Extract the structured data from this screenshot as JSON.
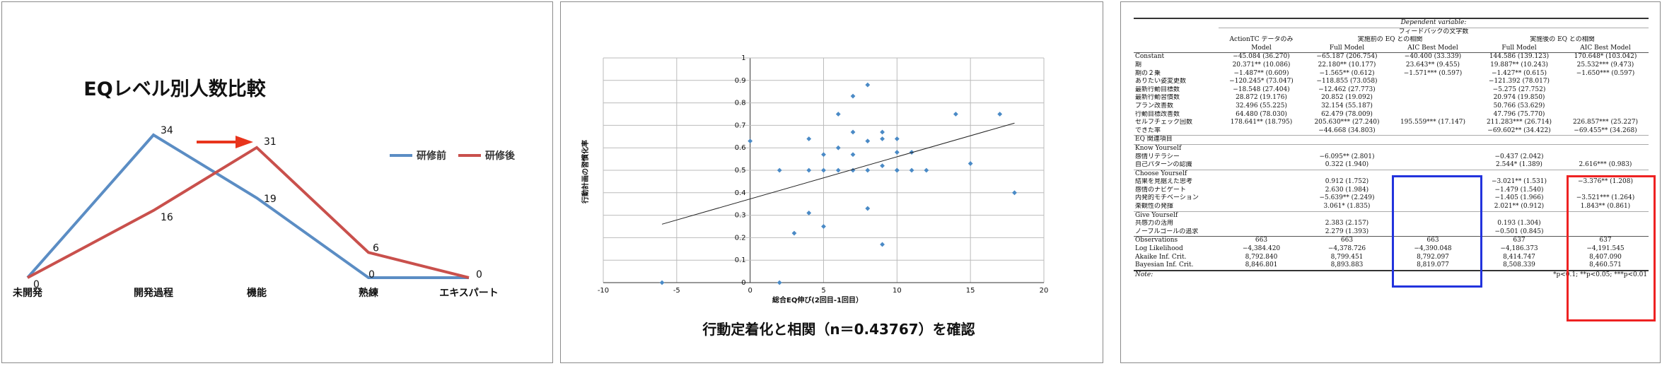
{
  "colors": {
    "before": "#5b8dc4",
    "after": "#c9504c",
    "arrow": "#e8341c",
    "scatter": "#4a8ac6",
    "trend": "#222222",
    "grid": "#bbbbbb",
    "box_blue": "#2233dd",
    "box_red": "#ee2222"
  },
  "chart_data": [
    {
      "type": "line",
      "title": "EQレベル別人数比較",
      "categories": [
        "未開発",
        "開発過程",
        "機能",
        "熟練",
        "エキスパート"
      ],
      "series": [
        {
          "name": "研修前",
          "values": [
            0,
            34,
            19,
            0,
            0
          ]
        },
        {
          "name": "研修後",
          "values": [
            0,
            16,
            31,
            6,
            0
          ]
        }
      ],
      "ylim": [
        0,
        40
      ],
      "grid": false,
      "legend": "right"
    },
    {
      "type": "scatter",
      "caption": "行動定着化と相関（n＝0.43767）を確認",
      "xlabel": "総合EQ伸び(2回目-1回目）",
      "ylabel": "行動計画の習慣化率",
      "xlim": [
        -10,
        20
      ],
      "ylim": [
        0,
        1
      ],
      "xticks": [
        "-10",
        "-5",
        "0",
        "5",
        "10",
        "15",
        "20"
      ],
      "yticks": [
        "0",
        "0.1",
        "0.2",
        "0.3",
        "0.4",
        "0.5",
        "0.6",
        "0.7",
        "0.8",
        "0.9",
        "1"
      ],
      "grid": true,
      "points": [
        [
          -6,
          0
        ],
        [
          0,
          0.63
        ],
        [
          2,
          0.5
        ],
        [
          2,
          0
        ],
        [
          3,
          0.22
        ],
        [
          4,
          0.64
        ],
        [
          4,
          0.5
        ],
        [
          4,
          0.31
        ],
        [
          5,
          0.57
        ],
        [
          5,
          0.25
        ],
        [
          5,
          0.5
        ],
        [
          6,
          0.75
        ],
        [
          6,
          0.6
        ],
        [
          6,
          0.5
        ],
        [
          7,
          0.83
        ],
        [
          7,
          0.67
        ],
        [
          7,
          0.57
        ],
        [
          7,
          0.5
        ],
        [
          8,
          0.88
        ],
        [
          8,
          0.63
        ],
        [
          8,
          0.5
        ],
        [
          8,
          0.33
        ],
        [
          9,
          0.67
        ],
        [
          9,
          0.64
        ],
        [
          9,
          0.52
        ],
        [
          9,
          0.17
        ],
        [
          10,
          0.64
        ],
        [
          10,
          0.58
        ],
        [
          10,
          0.5
        ],
        [
          10,
          0.5
        ],
        [
          11,
          0.58
        ],
        [
          11,
          0.5
        ],
        [
          12,
          0.5
        ],
        [
          14,
          0.75
        ],
        [
          15,
          0.53
        ],
        [
          17,
          0.75
        ],
        [
          18,
          0.4
        ]
      ],
      "trendline": {
        "from": [
          -6,
          0.26
        ],
        "to": [
          18,
          0.71
        ]
      }
    },
    {
      "type": "table",
      "dep_var_label": "Dependent variable:",
      "dep_var": "フィードバックの文字数",
      "group_headers": [
        "ActionTC データのみ",
        "実施前の EQ との相関",
        "実施後の EQ との相関"
      ],
      "model_headers": [
        "Model",
        "Full Model",
        "AIC Best Model",
        "Full Model",
        "AIC Best Model"
      ],
      "rows": [
        {
          "label": "Constant",
          "v": [
            "−45.084 (36.270)",
            "−65.187 (206.754)",
            "−40.400 (33.339)",
            "144.586 (139.123)",
            "170.648* (103.042)"
          ]
        },
        {
          "label": "期",
          "v": [
            "20.371** (10.086)",
            "22.180** (10.177)",
            "23.643** (9.455)",
            "19.887** (10.243)",
            "25.532*** (9.473)"
          ]
        },
        {
          "label": "期の２乗",
          "v": [
            "−1.487** (0.609)",
            "−1.565** (0.612)",
            "−1.571*** (0.597)",
            "−1.427** (0.615)",
            "−1.650*** (0.597)"
          ]
        },
        {
          "label": "ありたい姿変更数",
          "v": [
            "−120.245* (73.047)",
            "−118.855 (73.058)",
            "",
            "−121.392 (78.017)",
            ""
          ]
        },
        {
          "label": "最新行動目標数",
          "v": [
            "−18.548 (27.404)",
            "−12.462 (27.773)",
            "",
            "−5.275 (27.752)",
            ""
          ]
        },
        {
          "label": "最新行動習慣数",
          "v": [
            "28.872 (19.176)",
            "20.852 (19.092)",
            "",
            "20.974 (19.850)",
            ""
          ]
        },
        {
          "label": "プラン改善数",
          "v": [
            "32.496 (55.225)",
            "32.154 (55.187)",
            "",
            "50.766 (53.629)",
            ""
          ]
        },
        {
          "label": "行動目標改善数",
          "v": [
            "64.480 (78.030)",
            "62.479 (78.009)",
            "",
            "47.796 (75.770)",
            ""
          ]
        },
        {
          "label": "セルフチェック回数",
          "v": [
            "178.641** (18.795)",
            "205.630*** (27.240)",
            "195.559*** (17.147)",
            "211.283*** (26.714)",
            "226.857*** (25.227)"
          ]
        },
        {
          "label": "できた率",
          "v": [
            "",
            "−44.668 (34.803)",
            "",
            "−69.602** (34.422)",
            "−69.455** (34.268)"
          ]
        },
        {
          "label": "EQ 関連項目",
          "v": [
            "",
            "",
            "",
            "",
            ""
          ],
          "rule": "thin"
        },
        {
          "label": "Know Yourself",
          "v": [
            "",
            "",
            "",
            "",
            ""
          ],
          "rule": "thin"
        },
        {
          "label": "感情リテラシー",
          "v": [
            "",
            "−6.095** (2.801)",
            "",
            "−0.437 (2.042)",
            ""
          ]
        },
        {
          "label": "自己パターンの認識",
          "v": [
            "",
            "0.322 (1.940)",
            "",
            "2.544* (1.389)",
            "2.616*** (0.983)"
          ]
        },
        {
          "label": "Choose Yourself",
          "v": [
            "",
            "",
            "",
            "",
            ""
          ],
          "rule": "thin"
        },
        {
          "label": "結果を見据えた思考",
          "v": [
            "",
            "0.912 (1.752)",
            "",
            "−3.021** (1.531)",
            "−3.376** (1.208)"
          ]
        },
        {
          "label": "感情のナビゲート",
          "v": [
            "",
            "2.630 (1.984)",
            "",
            "−1.479 (1.540)",
            ""
          ]
        },
        {
          "label": "内発的モチベーション",
          "v": [
            "",
            "−5.639** (2.249)",
            "",
            "−1.405 (1.966)",
            "−3.521*** (1.264)"
          ]
        },
        {
          "label": "楽観性の発揮",
          "v": [
            "",
            "3.061* (1.835)",
            "",
            "2.021** (0.912)",
            "1.843** (0.861)"
          ]
        },
        {
          "label": "Give Yourself",
          "v": [
            "",
            "",
            "",
            "",
            ""
          ],
          "rule": "thin"
        },
        {
          "label": "共感力の活用",
          "v": [
            "",
            "2.383 (2.157)",
            "",
            "0.193 (1.304)",
            ""
          ]
        },
        {
          "label": "ノーブルゴールの追求",
          "v": [
            "",
            "2.279 (1.393)",
            "",
            "−0.501 (0.845)",
            ""
          ]
        },
        {
          "label": "Observations",
          "v": [
            "663",
            "663",
            "663",
            "637",
            "637"
          ],
          "rule": "mid"
        },
        {
          "label": "Log Likelihood",
          "v": [
            "−4,384.420",
            "−4,378.726",
            "−4,390.048",
            "−4,186.373",
            "−4,191.545"
          ]
        },
        {
          "label": "Akaike Inf. Crit.",
          "v": [
            "8,792.840",
            "8,799.451",
            "8,792.097",
            "8,414.747",
            "8,407.090"
          ]
        },
        {
          "label": "Bayesian Inf. Crit.",
          "v": [
            "8,846.801",
            "8,893.883",
            "8,819.077",
            "8,508.339",
            "8,460.571"
          ]
        }
      ],
      "note_label": "Note:",
      "note": "*p<0.1; **p<0.05; ***p<0.01"
    }
  ]
}
